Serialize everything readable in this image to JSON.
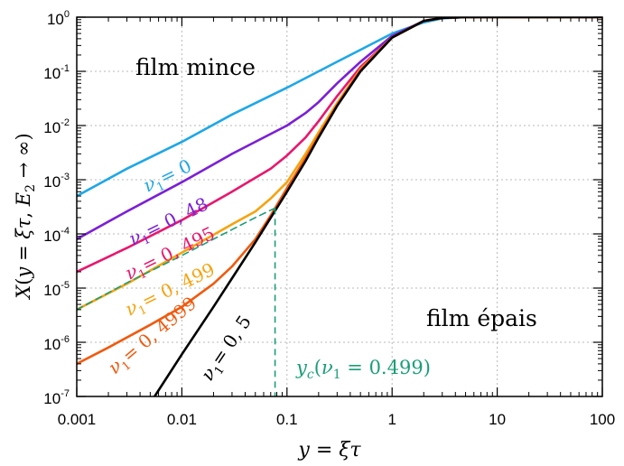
{
  "chart_data": {
    "type": "line",
    "xscale": "log",
    "yscale": "log",
    "xlim": [
      0.001,
      100
    ],
    "ylim": [
      1e-07,
      1
    ],
    "grid": true,
    "xticks": [
      "0.001",
      "0.01",
      "0.1",
      "1",
      "10",
      "100"
    ],
    "yticks": [
      {
        "base": "10",
        "exp": "0"
      },
      {
        "base": "10",
        "exp": "-1"
      },
      {
        "base": "10",
        "exp": "-2"
      },
      {
        "base": "10",
        "exp": "-3"
      },
      {
        "base": "10",
        "exp": "-4"
      },
      {
        "base": "10",
        "exp": "-5"
      },
      {
        "base": "10",
        "exp": "-6"
      },
      {
        "base": "10",
        "exp": "-7"
      }
    ],
    "xlabel": "y = ξτ",
    "ylabel": "X(y = ξτ, E₂ → ∞)",
    "annotations": {
      "thin_film": "film mince",
      "thick_film": "film épais",
      "yc_label": "y_c(ν₁ = 0.499)"
    },
    "series": [
      {
        "label": "ν₁ = 0",
        "color": "#1ea7e6",
        "x": [
          0.001,
          0.003,
          0.01,
          0.03,
          0.1,
          0.3,
          0.5,
          1,
          2,
          3,
          5,
          10,
          100
        ],
        "y": [
          0.0005,
          0.0016,
          0.005,
          0.016,
          0.05,
          0.15,
          0.25,
          0.5,
          0.8,
          0.95,
          1.0,
          1.0,
          1.0
        ]
      },
      {
        "label": "ν₁ = 0, 48",
        "color": "#7b1fd6",
        "x": [
          0.001,
          0.003,
          0.01,
          0.03,
          0.1,
          0.15,
          0.2,
          0.3,
          0.5,
          1,
          2,
          3,
          5,
          10,
          100
        ],
        "y": [
          8e-05,
          0.00026,
          0.0009,
          0.003,
          0.01,
          0.017,
          0.027,
          0.06,
          0.15,
          0.45,
          0.85,
          0.97,
          1.0,
          1.0,
          1.0
        ]
      },
      {
        "label": "ν₁ = 0, 495",
        "color": "#e8176d",
        "x": [
          0.001,
          0.003,
          0.01,
          0.03,
          0.07,
          0.1,
          0.15,
          0.2,
          0.3,
          0.5,
          1,
          2,
          3,
          5,
          10,
          100
        ],
        "y": [
          2e-05,
          5.5e-05,
          0.00018,
          0.0006,
          0.0016,
          0.0028,
          0.006,
          0.012,
          0.035,
          0.12,
          0.42,
          0.85,
          0.97,
          1.0,
          1.0,
          1.0
        ]
      },
      {
        "label": "ν₁ = 0, 499",
        "color": "#f5a30f",
        "x": [
          0.001,
          0.003,
          0.01,
          0.03,
          0.05,
          0.07,
          0.1,
          0.15,
          0.2,
          0.3,
          0.5,
          1,
          2,
          3,
          5,
          10,
          100
        ],
        "y": [
          4e-06,
          1.2e-05,
          4.5e-05,
          0.00015,
          0.00026,
          0.00045,
          0.0009,
          0.003,
          0.0075,
          0.026,
          0.11,
          0.42,
          0.85,
          0.97,
          1.0,
          1.0,
          1.0
        ]
      },
      {
        "label": "ν₁ = 0, 4999",
        "color": "#f05a0e",
        "x": [
          0.001,
          0.002,
          0.005,
          0.01,
          0.02,
          0.03,
          0.05,
          0.07,
          0.1,
          0.15,
          0.2,
          0.3,
          0.5,
          1,
          2,
          3,
          5,
          10,
          100
        ],
        "y": [
          4e-07,
          8e-07,
          2.1e-06,
          4.5e-06,
          1.2e-05,
          2.5e-05,
          8e-05,
          0.00022,
          0.0007,
          0.0025,
          0.0065,
          0.024,
          0.105,
          0.42,
          0.85,
          0.97,
          1.0,
          1.0,
          1.0
        ]
      },
      {
        "label": "ν₁ = 0, 5",
        "color": "#000000",
        "x": [
          0.0055,
          0.01,
          0.02,
          0.05,
          0.1,
          0.15,
          0.2,
          0.3,
          0.5,
          1,
          2,
          3,
          5,
          10,
          100
        ],
        "y": [
          1e-07,
          6e-07,
          4.5e-06,
          7e-05,
          0.0006,
          0.0022,
          0.006,
          0.023,
          0.1,
          0.42,
          0.85,
          0.97,
          1.0,
          1.0,
          1.0
        ]
      },
      {
        "label": "dashed_yc",
        "color": "#1a9e77",
        "dashed": true,
        "x": [
          0.001,
          0.003,
          0.01,
          0.03,
          0.05,
          0.077
        ],
        "y": [
          4e-06,
          1.25e-05,
          4e-05,
          0.00012,
          0.0002,
          0.0003
        ]
      }
    ],
    "yc": {
      "x": 0.077,
      "y": 0.0003
    }
  }
}
